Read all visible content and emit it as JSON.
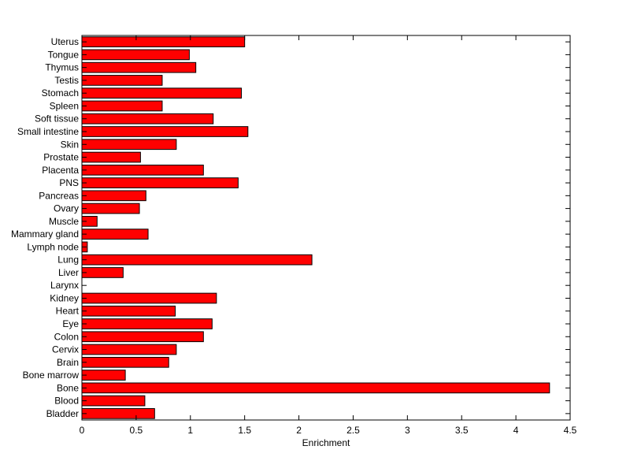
{
  "chart_data": {
    "type": "bar",
    "orientation": "horizontal",
    "categories": [
      "Uterus",
      "Tongue",
      "Thymus",
      "Testis",
      "Stomach",
      "Spleen",
      "Soft tissue",
      "Small intestine",
      "Skin",
      "Prostate",
      "Placenta",
      "PNS",
      "Pancreas",
      "Ovary",
      "Muscle",
      "Mammary gland",
      "Lymph node",
      "Lung",
      "Liver",
      "Larynx",
      "Kidney",
      "Heart",
      "Eye",
      "Colon",
      "Cervix",
      "Brain",
      "Bone marrow",
      "Bone",
      "Blood",
      "Bladder"
    ],
    "values": [
      1.5,
      0.99,
      1.05,
      0.74,
      1.47,
      0.74,
      1.21,
      1.53,
      0.87,
      0.54,
      1.12,
      1.44,
      0.59,
      0.53,
      0.14,
      0.61,
      0.05,
      2.12,
      0.38,
      0.0,
      1.24,
      0.86,
      1.2,
      1.12,
      0.87,
      0.8,
      0.4,
      4.31,
      0.58,
      0.67
    ],
    "title": "",
    "xlabel": "Enrichment",
    "ylabel": "",
    "xlim": [
      0,
      4.5
    ],
    "xticks": [
      "0",
      "0.5",
      "1",
      "1.5",
      "2",
      "2.5",
      "3",
      "3.5",
      "4",
      "4.5"
    ],
    "grid": false,
    "bar_color": "#ff0000",
    "bar_edge_color": "#000000"
  }
}
